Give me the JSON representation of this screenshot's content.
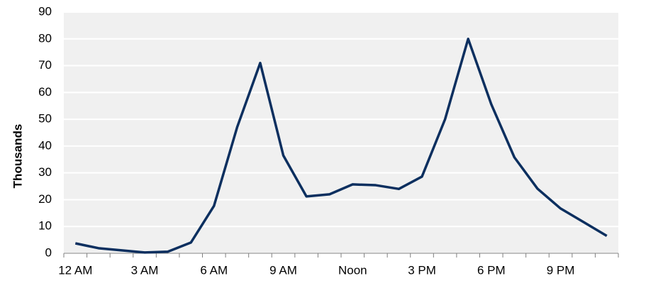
{
  "chart_data": {
    "type": "line",
    "y_label": "Thousands",
    "categories": [
      "12 AM",
      null,
      null,
      "3 AM",
      null,
      null,
      "6 AM",
      null,
      null,
      "9 AM",
      null,
      null,
      "Noon",
      null,
      null,
      "3 PM",
      null,
      null,
      "6 PM",
      null,
      null,
      "9 PM",
      null,
      null
    ],
    "values": [
      3.7,
      1.9,
      1.1,
      0.3,
      0.6,
      4.0,
      17.7,
      47,
      71,
      36.5,
      21.2,
      22,
      25.7,
      25.4,
      24,
      28.6,
      50,
      80,
      55.6,
      35.8,
      24.1,
      16.7,
      11.6,
      6.5
    ],
    "color": "#0c2f5f",
    "ylim": [
      0,
      90
    ],
    "yticks": [
      0,
      10,
      20,
      30,
      40,
      50,
      60,
      70,
      80,
      90
    ],
    "grid": true
  }
}
